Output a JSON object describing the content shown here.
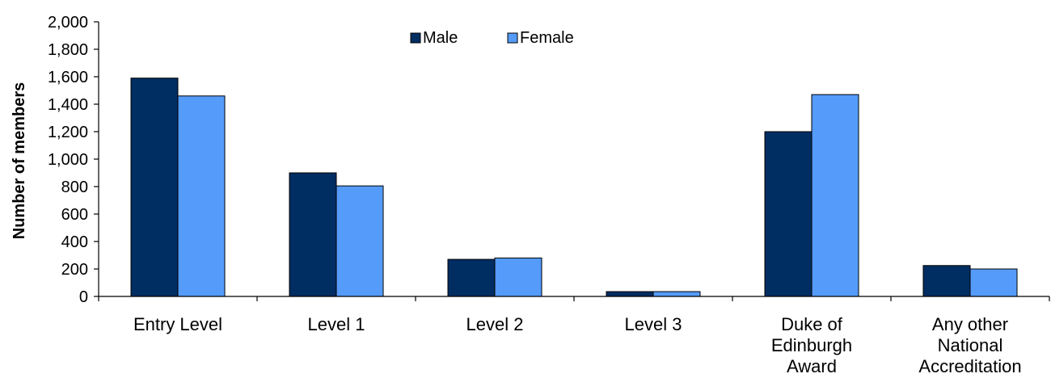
{
  "chart_data": {
    "type": "bar",
    "categories": [
      [
        "Entry Level"
      ],
      [
        "Level 1"
      ],
      [
        "Level 2"
      ],
      [
        "Level 3"
      ],
      [
        "Duke of",
        "Edinburgh",
        "Award"
      ],
      [
        "Any other",
        "National",
        "Accreditation"
      ]
    ],
    "series": [
      {
        "name": "Male",
        "color": "#002d62",
        "values": [
          1590,
          900,
          270,
          35,
          1200,
          225
        ]
      },
      {
        "name": "Female",
        "color": "#559bfa",
        "values": [
          1460,
          805,
          280,
          35,
          1470,
          200
        ]
      }
    ],
    "ylabel": "Number of members",
    "xlabel": "",
    "ylim": [
      0,
      2000
    ],
    "yticks": [
      0,
      200,
      400,
      600,
      800,
      1000,
      1200,
      1400,
      1600,
      1800,
      2000
    ],
    "ytick_labels": [
      "0",
      "200",
      "400",
      "600",
      "800",
      "1,000",
      "1,200",
      "1,400",
      "1,600",
      "1,800",
      "2,000"
    ],
    "grid": false,
    "legend": "top-center"
  }
}
